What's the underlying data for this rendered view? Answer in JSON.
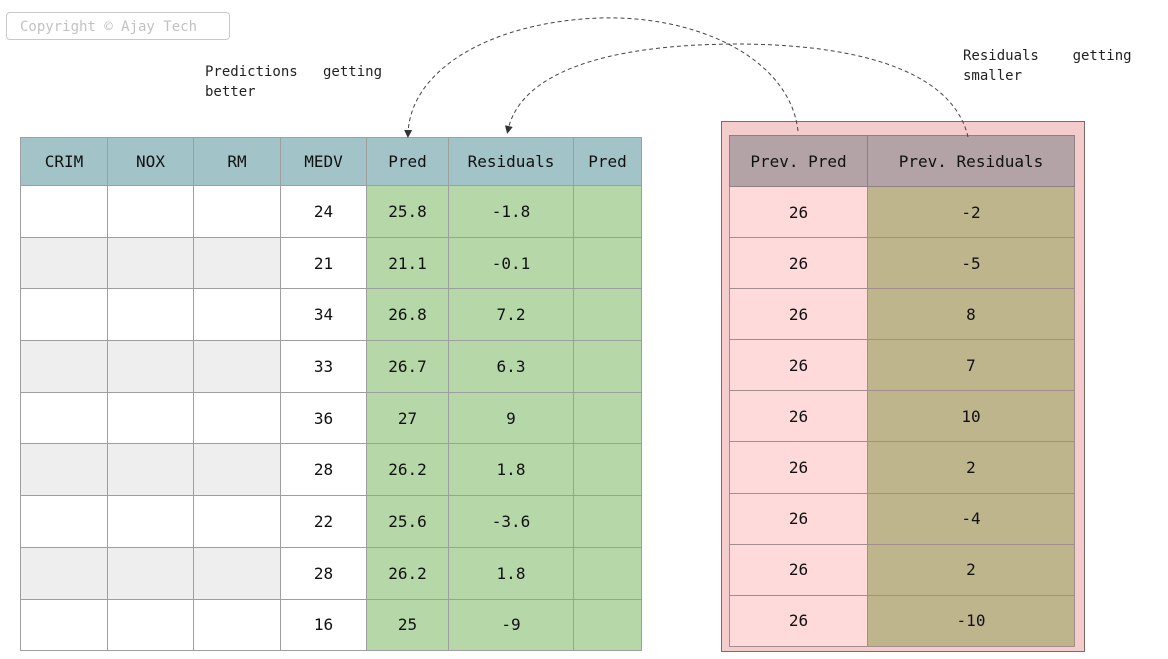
{
  "copyright": "Copyright © Ajay Tech",
  "annotations": {
    "predictions": "Predictions   getting\nbetter",
    "residuals": "Residuals    getting\nsmaller"
  },
  "main_table": {
    "headers": [
      "CRIM",
      "NOX",
      "RM",
      "MEDV",
      "Pred",
      "Residuals",
      "Pred"
    ],
    "rows": [
      {
        "medv": "24",
        "pred": "25.8",
        "residual": "-1.8",
        "new_pred": ""
      },
      {
        "medv": "21",
        "pred": "21.1",
        "residual": "-0.1",
        "new_pred": ""
      },
      {
        "medv": "34",
        "pred": "26.8",
        "residual": "7.2",
        "new_pred": ""
      },
      {
        "medv": "33",
        "pred": "26.7",
        "residual": "6.3",
        "new_pred": ""
      },
      {
        "medv": "36",
        "pred": "27",
        "residual": "9",
        "new_pred": ""
      },
      {
        "medv": "28",
        "pred": "26.2",
        "residual": "1.8",
        "new_pred": ""
      },
      {
        "medv": "22",
        "pred": "25.6",
        "residual": "-3.6",
        "new_pred": ""
      },
      {
        "medv": "28",
        "pred": "26.2",
        "residual": "1.8",
        "new_pred": ""
      },
      {
        "medv": "16",
        "pred": "25",
        "residual": "-9",
        "new_pred": ""
      }
    ]
  },
  "prev_table": {
    "headers": [
      "Prev. Pred",
      "Prev. Residuals"
    ],
    "rows": [
      {
        "pred": "26",
        "residual": "-2"
      },
      {
        "pred": "26",
        "residual": "-5"
      },
      {
        "pred": "26",
        "residual": "8"
      },
      {
        "pred": "26",
        "residual": "7"
      },
      {
        "pred": "26",
        "residual": "10"
      },
      {
        "pred": "26",
        "residual": "2"
      },
      {
        "pred": "26",
        "residual": "-4"
      },
      {
        "pred": "26",
        "residual": "2"
      },
      {
        "pred": "26",
        "residual": "-10"
      }
    ]
  },
  "colors": {
    "header_teal": "#a2c4c9",
    "green": "#b6d7a8",
    "pink": "#f4cccc",
    "olive": "#bfb58c",
    "header_mauve": "#b3a3a6"
  }
}
